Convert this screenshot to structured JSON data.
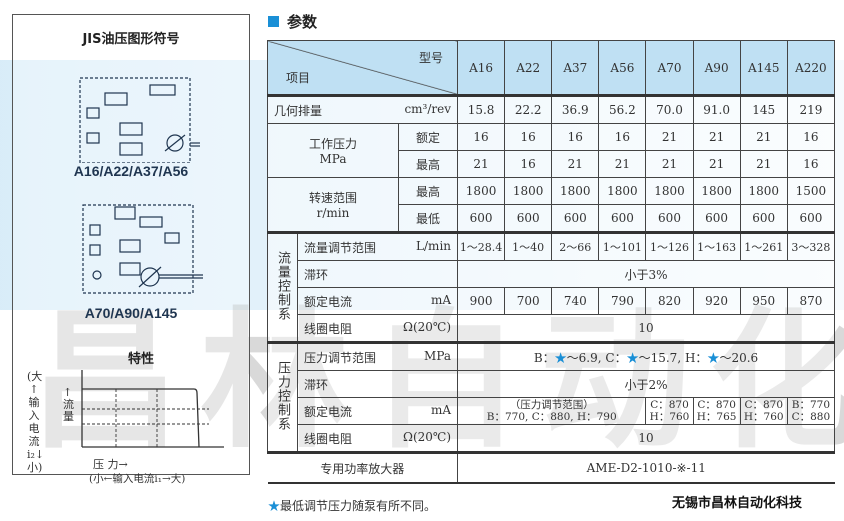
{
  "left_panel": {
    "title": "JIS油压图形符号",
    "schematic1_label": "A16/A22/A37/A56",
    "schematic2_label": "A70/A90/A145",
    "characteristic_title": "特性",
    "y_axis_label": "(大↑输入电流i₂↓小)",
    "flow_label": "↑流量",
    "x_axis_label": "压 力→",
    "x_axis_sub": "(小←输入电流i₁→大)"
  },
  "section_title": "参数",
  "table": {
    "corner_top": "型号",
    "corner_bottom": "项目",
    "models": [
      "A16",
      "A22",
      "A37",
      "A56",
      "A70",
      "A90",
      "A145",
      "A220"
    ],
    "displacement": {
      "label": "几何排量",
      "unit": "cm³/rev",
      "values": [
        "15.8",
        "22.2",
        "36.9",
        "56.2",
        "70.0",
        "91.0",
        "145",
        "219"
      ]
    },
    "pressure": {
      "label": "工作压力",
      "unit": "MPa",
      "rated": {
        "label": "额定",
        "values": [
          "16",
          "16",
          "16",
          "16",
          "21",
          "21",
          "21",
          "16"
        ]
      },
      "max": {
        "label": "最高",
        "values": [
          "21",
          "16",
          "21",
          "21",
          "21",
          "21",
          "21",
          "16"
        ]
      }
    },
    "speed": {
      "label": "转速范围",
      "unit": "r/min",
      "max": {
        "label": "最高",
        "values": [
          "1800",
          "1800",
          "1800",
          "1800",
          "1800",
          "1800",
          "1800",
          "1500"
        ]
      },
      "min": {
        "label": "最低",
        "values": [
          "600",
          "600",
          "600",
          "600",
          "600",
          "600",
          "600",
          "600"
        ]
      }
    },
    "flow_control": {
      "group": "流量控制系",
      "range": {
        "label": "流量调节范围",
        "unit": "L/min",
        "values": [
          "1～28.4",
          "1～40",
          "2～66",
          "1～101",
          "1～126",
          "1～163",
          "1～261",
          "3～328"
        ]
      },
      "hysteresis": {
        "label": "滞环",
        "value": "小于3%"
      },
      "current": {
        "label": "额定电流",
        "unit": "mA",
        "values": [
          "900",
          "700",
          "740",
          "790",
          "820",
          "920",
          "950",
          "870"
        ]
      },
      "resistance": {
        "label": "线圈电阻",
        "unit": "Ω(20℃)",
        "value": "10"
      }
    },
    "pressure_control": {
      "group": "压力控制系",
      "range": {
        "label": "压力调节范围",
        "unit": "MPa",
        "parts": [
          "B：",
          "～6.9, C：",
          "～15.7, H：",
          "～20.6"
        ]
      },
      "hysteresis": {
        "label": "滞环",
        "value": "小于2%"
      },
      "current": {
        "label": "额定电流",
        "unit": "mA",
        "merged_line1": "（压力调节范围）",
        "merged_line2": "B：770, C：880, H：790",
        "values": [
          [
            "C：870",
            "H：760"
          ],
          [
            "C：870",
            "H：765"
          ],
          [
            "C：870",
            "H：760"
          ],
          [
            "B：770",
            "C：880"
          ]
        ]
      },
      "resistance": {
        "label": "线圈电阻",
        "unit": "Ω(20℃)",
        "value": "10"
      }
    },
    "amplifier": {
      "label": "专用功率放大器",
      "value": "AME-D2-1010-※-11"
    }
  },
  "footnote": "最低调节压力随泵有所不同。",
  "star": "★",
  "brand": "无锡市昌林自动化科技",
  "colors": {
    "accent": "#1a8fd6",
    "header_bg": "#bfe0f3"
  }
}
